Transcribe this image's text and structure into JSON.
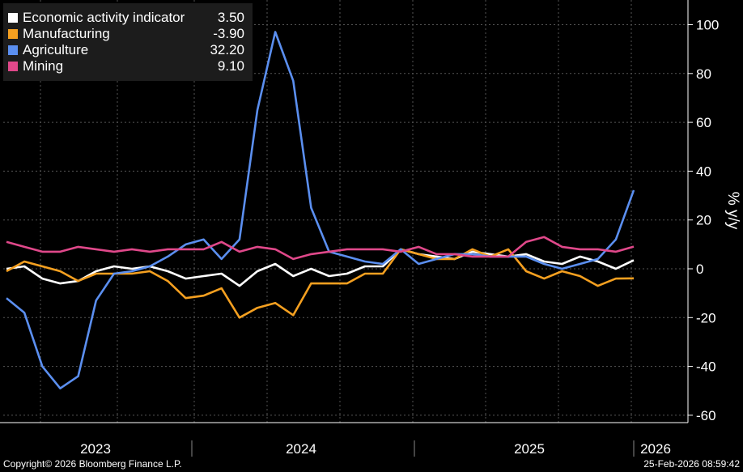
{
  "chart_data": {
    "type": "line",
    "ylabel": "% y/y",
    "ylim": [
      -65,
      110
    ],
    "yticks": [
      -60,
      -40,
      -20,
      0,
      20,
      40,
      60,
      80,
      100
    ],
    "year_labels": [
      "2023",
      "2024",
      "2025",
      "2026"
    ],
    "series": [
      {
        "name": "Economic activity indicator",
        "display_value": "3.50",
        "color": "#ffffff",
        "values": [
          0,
          1,
          -4,
          -6,
          -5,
          -1,
          1,
          0,
          1,
          -1,
          -4,
          -3,
          -2,
          -7,
          -1,
          2,
          -3,
          0,
          -3,
          -2,
          1,
          1,
          8,
          6,
          5,
          4,
          7,
          6,
          5,
          6,
          3,
          2,
          5,
          3,
          0,
          3.5
        ]
      },
      {
        "name": "Manufacturing",
        "display_value": "-3.90",
        "color": "#f5a020",
        "values": [
          -1,
          3,
          1,
          -1,
          -5,
          -2,
          -2,
          -2,
          -1,
          -5,
          -12,
          -11,
          -8,
          -20,
          -16,
          -14,
          -19,
          -6,
          -6,
          -6,
          -2,
          -2,
          8,
          6,
          4,
          4,
          8,
          5,
          8,
          -1,
          -4,
          -1,
          -3,
          -7,
          -4,
          -3.9
        ]
      },
      {
        "name": "Agriculture",
        "display_value": "32.20",
        "color": "#5b8ff0",
        "values": [
          -12,
          -18,
          -40,
          -49,
          -44,
          -13,
          -2,
          -1,
          1,
          5,
          10,
          12,
          4,
          12,
          65,
          97,
          77,
          25,
          7,
          5,
          3,
          2,
          8,
          2,
          4,
          6,
          6,
          5,
          5,
          5,
          2,
          0,
          2,
          4,
          12,
          32.2
        ]
      },
      {
        "name": "Mining",
        "display_value": "9.10",
        "color": "#e0488a",
        "values": [
          11,
          9,
          7,
          7,
          9,
          8,
          7,
          8,
          7,
          8,
          8,
          8,
          11,
          7,
          9,
          8,
          4,
          6,
          7,
          8,
          8,
          8,
          7,
          9,
          6,
          6,
          5,
          5,
          5,
          11,
          13,
          9,
          8,
          8,
          7,
          9.1
        ]
      }
    ]
  },
  "footer": {
    "copyright": "Copyright© 2026 Bloomberg Finance L.P.",
    "timestamp": "25-Feb-2026 08:59:42"
  }
}
